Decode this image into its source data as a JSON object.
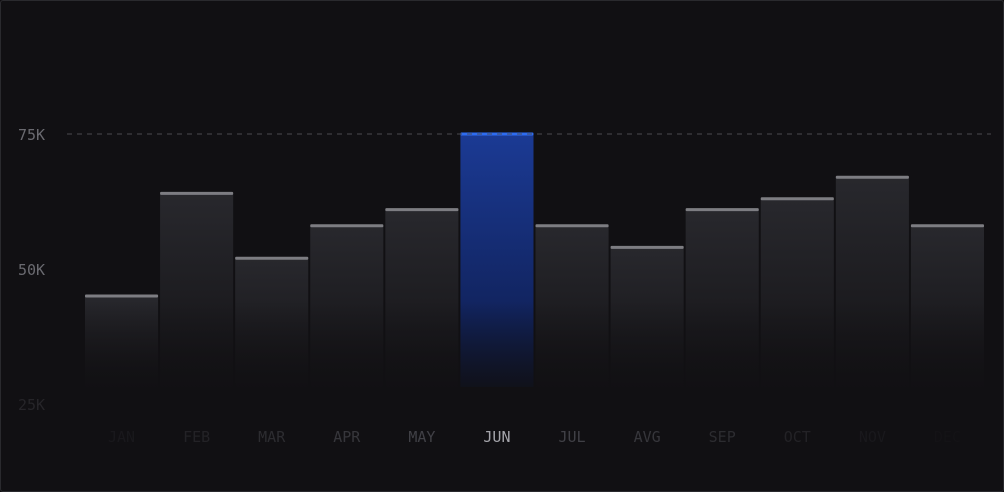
{
  "chart_data": {
    "type": "bar",
    "categories": [
      "JAN",
      "FEB",
      "MAR",
      "APR",
      "MAY",
      "JUN",
      "JUL",
      "AVG",
      "SEP",
      "OCT",
      "NOV",
      "DEC"
    ],
    "values": [
      45,
      64,
      52,
      58,
      61,
      75,
      58,
      54,
      61,
      63,
      67,
      58
    ],
    "highlighted": "JUN",
    "y_ticks": [
      {
        "value": 75,
        "label": "75K"
      },
      {
        "value": 50,
        "label": "50K"
      },
      {
        "value": 25,
        "label": "25K"
      }
    ],
    "reference_line": 75,
    "ylim": [
      25,
      95
    ],
    "grid": false,
    "unit": "K"
  },
  "colors": {
    "background": "#111013",
    "bar_top": "#28282d",
    "bar_bottom": "#141316",
    "bar_cap": "#7d7d82",
    "highlight_top": "#1b3a94",
    "highlight_bottom": "#0d1a48",
    "highlight_cap": "#2d6cf0",
    "reference_line": "#4a4a4f",
    "tick_text": "#6a6a70",
    "label_text": "#4a4a50",
    "label_highlight": "#a4a4aa"
  }
}
